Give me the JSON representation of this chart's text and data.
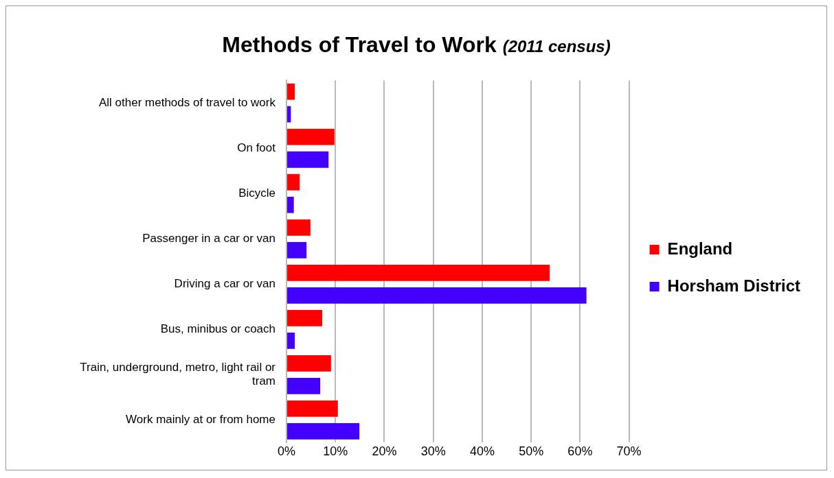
{
  "chart_data": {
    "type": "bar",
    "orientation": "horizontal",
    "title": "Methods of Travel to Work (2011 census)",
    "categories": [
      "All other methods of travel to work",
      "On foot",
      "Bicycle",
      "Passenger in a car or van",
      "Driving a car or van",
      "Bus, minibus or coach",
      "Train, underground, metro, light rail or tram",
      "Work mainly at or from home"
    ],
    "series": [
      {
        "name": "England",
        "color": "#ff0000",
        "values": [
          1.7,
          9.8,
          2.7,
          4.9,
          53.8,
          7.3,
          9.1,
          10.5
        ]
      },
      {
        "name": "Horsham District",
        "color": "#4400ff",
        "values": [
          0.9,
          8.6,
          1.5,
          4.1,
          61.3,
          1.7,
          6.9,
          14.9
        ]
      }
    ],
    "xlim": [
      0,
      70
    ],
    "xticks": [
      {
        "value": 0,
        "label": "0%"
      },
      {
        "value": 10,
        "label": "10%"
      },
      {
        "value": 20,
        "label": "20%"
      },
      {
        "value": 30,
        "label": "30%"
      },
      {
        "value": 40,
        "label": "40%"
      },
      {
        "value": 50,
        "label": "50%"
      },
      {
        "value": 60,
        "label": "60%"
      },
      {
        "value": 70,
        "label": "70%"
      }
    ],
    "grid": "x",
    "legend": "right"
  }
}
